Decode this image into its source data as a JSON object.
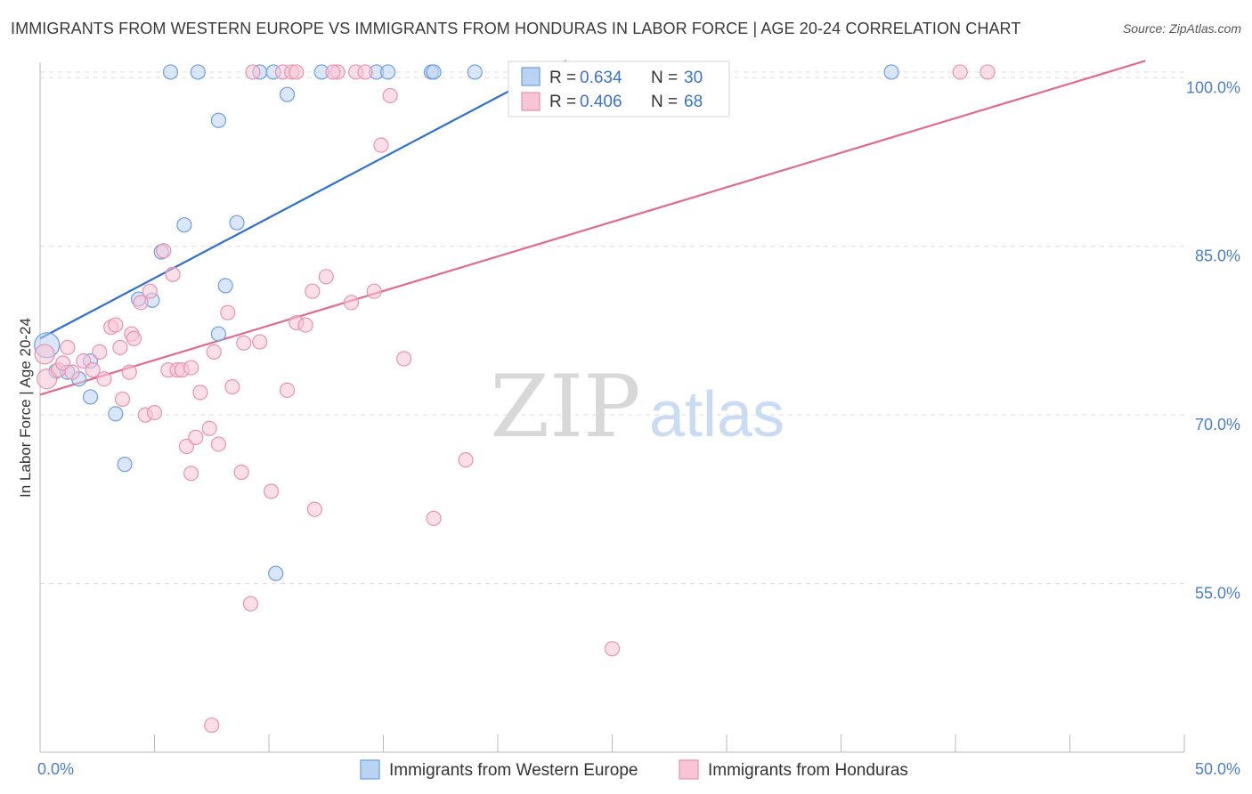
{
  "title": "IMMIGRANTS FROM WESTERN EUROPE VS IMMIGRANTS FROM HONDURAS IN LABOR FORCE | AGE 20-24 CORRELATION CHART",
  "source": "Source: ZipAtlas.com",
  "watermark": {
    "zip": "ZIP",
    "atlas": "atlas"
  },
  "chart_data": {
    "type": "scatter",
    "ylabel": "In Labor Force | Age 20-24",
    "xlim": [
      0,
      50
    ],
    "ylim": [
      40,
      102
    ],
    "x_tick_labels": [
      "0.0%",
      "50.0%"
    ],
    "y_ticks": [
      55,
      70,
      85,
      100
    ],
    "y_tick_labels": [
      "55.0%",
      "70.0%",
      "85.0%",
      "100.0%"
    ],
    "colors": {
      "blue": "#6b9ee0",
      "blue_fill": "#b9d3f3",
      "blue_line": "#2f6fd0",
      "pink": "#e892ae",
      "pink_fill": "#f7c5d5",
      "pink_line": "#e06a93"
    },
    "series": [
      {
        "name": "Immigrants from Western Europe",
        "color": "blue",
        "R": "0.634",
        "N": "30",
        "trend": {
          "x1": 0,
          "y1": 76.8,
          "x2": 23.0,
          "y2": 101.5
        },
        "points": [
          [
            0.3,
            76.2
          ],
          [
            0.7,
            73.9
          ],
          [
            1.2,
            73.8
          ],
          [
            1.7,
            73.2
          ],
          [
            2.2,
            74.8
          ],
          [
            2.2,
            71.6
          ],
          [
            3.3,
            70.1
          ],
          [
            3.7,
            65.6
          ],
          [
            4.3,
            80.3
          ],
          [
            4.9,
            80.2
          ],
          [
            5.3,
            84.5
          ],
          [
            5.7,
            100.5
          ],
          [
            6.3,
            86.9
          ],
          [
            6.9,
            100.5
          ],
          [
            7.8,
            77.2
          ],
          [
            7.8,
            96.2
          ],
          [
            8.1,
            81.5
          ],
          [
            8.6,
            87.1
          ],
          [
            9.6,
            100.5
          ],
          [
            10.2,
            100.5
          ],
          [
            10.3,
            55.9
          ],
          [
            10.8,
            98.5
          ],
          [
            12.3,
            100.5
          ],
          [
            14.7,
            100.5
          ],
          [
            15.2,
            100.5
          ],
          [
            17.1,
            100.5
          ],
          [
            17.2,
            100.5
          ],
          [
            19.0,
            100.5
          ],
          [
            21.0,
            100.5
          ],
          [
            37.2,
            100.5
          ]
        ]
      },
      {
        "name": "Immigrants from Honduras",
        "color": "pink",
        "R": "0.406",
        "N": "68",
        "trend": {
          "x1": 0,
          "y1": 71.8,
          "x2": 48.3,
          "y2": 101.5
        },
        "points": [
          [
            0.2,
            75.4
          ],
          [
            0.3,
            73.2
          ],
          [
            0.8,
            74.0
          ],
          [
            1.0,
            74.6
          ],
          [
            1.2,
            76.0
          ],
          [
            1.4,
            73.8
          ],
          [
            1.9,
            74.8
          ],
          [
            2.3,
            74.0
          ],
          [
            2.6,
            75.6
          ],
          [
            2.8,
            73.2
          ],
          [
            3.1,
            77.8
          ],
          [
            3.3,
            78.0
          ],
          [
            3.5,
            76.0
          ],
          [
            3.6,
            71.4
          ],
          [
            3.9,
            73.8
          ],
          [
            4.0,
            77.2
          ],
          [
            4.1,
            76.8
          ],
          [
            4.4,
            80.0
          ],
          [
            4.6,
            70.0
          ],
          [
            4.8,
            81.0
          ],
          [
            5.0,
            70.2
          ],
          [
            5.4,
            84.6
          ],
          [
            5.6,
            74.0
          ],
          [
            5.8,
            82.5
          ],
          [
            6.0,
            74.0
          ],
          [
            6.2,
            74.0
          ],
          [
            6.4,
            67.2
          ],
          [
            6.6,
            64.8
          ],
          [
            6.8,
            68.0
          ],
          [
            7.0,
            72.0
          ],
          [
            7.4,
            68.8
          ],
          [
            7.6,
            75.6
          ],
          [
            7.8,
            67.4
          ],
          [
            8.2,
            79.1
          ],
          [
            8.4,
            72.5
          ],
          [
            8.8,
            64.9
          ],
          [
            8.9,
            76.4
          ],
          [
            9.2,
            53.2
          ],
          [
            9.6,
            76.5
          ],
          [
            10.1,
            63.2
          ],
          [
            10.8,
            72.2
          ],
          [
            11.2,
            78.2
          ],
          [
            11.6,
            78.0
          ],
          [
            11.9,
            81.0
          ],
          [
            12.0,
            61.6
          ],
          [
            12.5,
            82.3
          ],
          [
            13.0,
            100.5
          ],
          [
            13.6,
            80.0
          ],
          [
            13.8,
            100.5
          ],
          [
            14.6,
            81.0
          ],
          [
            14.9,
            94.0
          ],
          [
            15.3,
            98.4
          ],
          [
            15.9,
            75.0
          ],
          [
            17.2,
            60.8
          ],
          [
            18.6,
            66.0
          ],
          [
            25.0,
            49.2
          ],
          [
            7.5,
            42.4
          ],
          [
            9.3,
            100.5
          ],
          [
            10.6,
            100.5
          ],
          [
            11.0,
            100.5
          ],
          [
            12.8,
            100.5
          ],
          [
            14.2,
            100.5
          ],
          [
            24.4,
            100.5
          ],
          [
            28.5,
            100.5
          ],
          [
            40.2,
            100.5
          ],
          [
            41.4,
            100.5
          ],
          [
            11.2,
            100.5
          ],
          [
            6.6,
            74.2
          ]
        ]
      }
    ],
    "legend": {
      "position": "top-center"
    }
  },
  "legend_labels": {
    "r_label": "R =",
    "n_label": "N ="
  }
}
